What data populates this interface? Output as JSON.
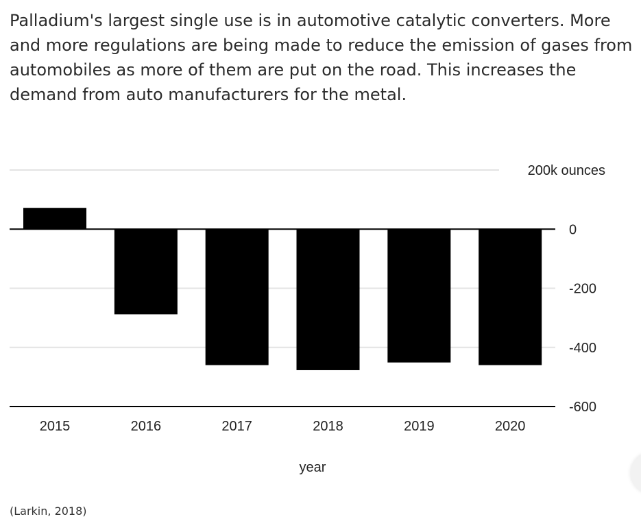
{
  "intro_text": "Palladium's largest single use is in automotive catalytic converters. More and more regulations are being made to reduce the emission of gases from automobiles as more of them are put on the road. This increases the demand from auto manufacturers for the metal.",
  "citation": "(Larkin, 2018)",
  "chart_data": {
    "type": "bar",
    "title": "",
    "xlabel": "year",
    "ylabel": "",
    "categories": [
      "2015",
      "2016",
      "2017",
      "2018",
      "2019",
      "2020"
    ],
    "values": [
      72,
      -288,
      -460,
      -477,
      -451,
      -460
    ],
    "ylim": [
      -600,
      200
    ],
    "y_ticks": [
      {
        "value": 200,
        "label": "200k ounces"
      },
      {
        "value": 0,
        "label": "0"
      },
      {
        "value": -200,
        "label": "-200"
      },
      {
        "value": -400,
        "label": "-400"
      },
      {
        "value": -600,
        "label": "-600"
      }
    ],
    "grid": true,
    "bar_color": "#000000",
    "grid_color": "#e3e3e3",
    "axis_color": "#000000"
  }
}
